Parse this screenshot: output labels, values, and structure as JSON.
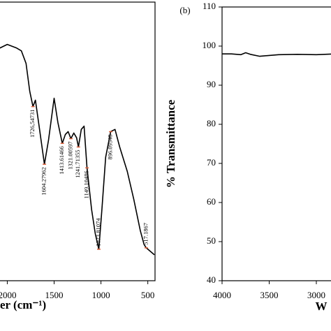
{
  "chart_data": [
    {
      "type": "line",
      "xlabel": "er (cm⁻¹)",
      "x": [
        2110,
        2000,
        1900,
        1850,
        1800,
        1760,
        1726,
        1700,
        1660,
        1604,
        1560,
        1500,
        1460,
        1413,
        1380,
        1350,
        1321,
        1290,
        1260,
        1241,
        1210,
        1180,
        1149,
        1100,
        1060,
        1023,
        990,
        950,
        896,
        850,
        800,
        720,
        650,
        580,
        540,
        517,
        430
      ],
      "values": [
        83,
        84.8,
        83.5,
        82.5,
        78,
        68,
        62.5,
        64.8,
        55.5,
        41.8,
        50.5,
        65.5,
        56.8,
        49.3,
        52.5,
        53.5,
        51,
        53,
        51.3,
        48,
        54.3,
        55.5,
        40.5,
        25.5,
        16.8,
        11.3,
        25.5,
        44.3,
        53.5,
        54.3,
        48,
        39.3,
        29.3,
        18,
        13,
        11.8,
        9.3
      ],
      "color": "#000000",
      "xlim": [
        2115,
        423
      ],
      "ylim": [
        0,
        100
      ],
      "xticks": [
        2000,
        1500,
        1000,
        500
      ],
      "annotations": [
        {
          "text": "1726,54731",
          "x": 1726,
          "y": 62.5
        },
        {
          "text": "1604.27962",
          "x": 1604,
          "y": 41.8
        },
        {
          "text": "1413.61466",
          "x": 1413,
          "y": 49.3
        },
        {
          "text": "1321.00597",
          "x": 1321,
          "y": 51
        },
        {
          "text": "1241.71355",
          "x": 1241,
          "y": 48
        },
        {
          "text": "1149.10486",
          "x": 1149,
          "y": 40.5
        },
        {
          "text": "1023.81074",
          "x": 1023,
          "y": 11.3
        },
        {
          "text": "896.09548",
          "x": 896,
          "y": 53.5
        },
        {
          "text": "517.1867",
          "x": 517,
          "y": 11.8
        }
      ],
      "annotation_color": "#e0603a"
    },
    {
      "type": "line",
      "title": "(b)",
      "xlabel": "W",
      "ylabel": "% Transmittance",
      "x": [
        4000,
        3900,
        3800,
        3750,
        3700,
        3600,
        3500,
        3400,
        3200,
        3000,
        2800
      ],
      "values": [
        98,
        98,
        97.8,
        98.3,
        97.9,
        97.4,
        97.6,
        97.8,
        97.9,
        97.8,
        98
      ],
      "color": "#000000",
      "xlim": [
        4000,
        2800
      ],
      "ylim": [
        40,
        110
      ],
      "xticks": [
        4000,
        3500,
        3000
      ],
      "yticks": [
        40,
        50,
        60,
        70,
        80,
        90,
        100,
        110
      ]
    }
  ]
}
